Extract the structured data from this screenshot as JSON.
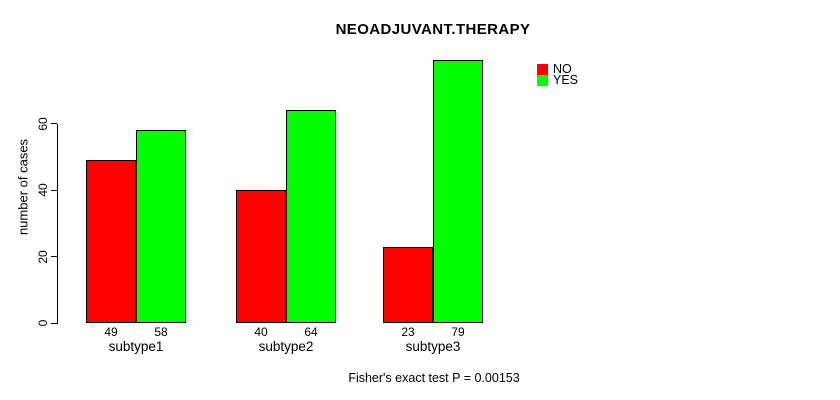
{
  "title": "NEOADJUVANT.THERAPY",
  "annotation": "Fisher's exact test P = 0.00153",
  "chart_data": {
    "type": "bar",
    "title": "NEOADJUVANT.THERAPY",
    "categories": [
      "subtype1",
      "subtype2",
      "subtype3"
    ],
    "series": [
      {
        "name": "NO",
        "color": "#ff0000",
        "values": [
          49,
          40,
          23
        ]
      },
      {
        "name": "YES",
        "color": "#00ff00",
        "values": [
          58,
          64,
          79
        ]
      }
    ],
    "xlabel": "",
    "ylabel": "number of cases",
    "yticks": [
      0,
      20,
      40,
      60
    ],
    "ylim": [
      0,
      79
    ],
    "grid": false,
    "legend_position": "top-right",
    "show_bar_values": true,
    "bar_border_color": "#000000"
  },
  "colors": {
    "no": "#ff0000",
    "yes": "#00ff00",
    "axis": "#000000",
    "text": "#000000",
    "background": "#ffffff"
  }
}
